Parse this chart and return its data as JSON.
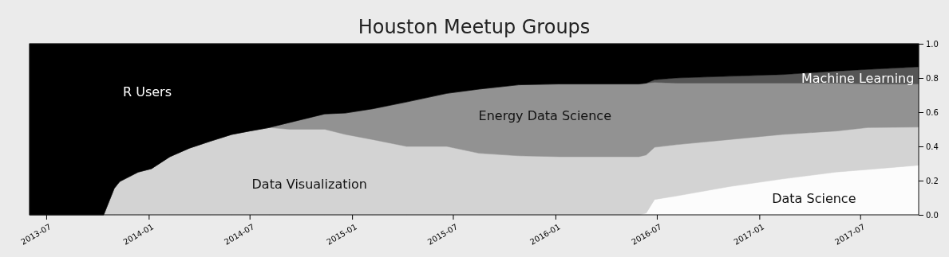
{
  "chart_data": {
    "type": "area",
    "title": "Houston Meetup Groups",
    "stacked": true,
    "legend": false,
    "grid": false,
    "x": [
      "2013-06-01",
      "2013-10-12",
      "2013-10-31",
      "2013-11-10",
      "2013-12-13",
      "2014-01-06",
      "2014-02-08",
      "2014-03-15",
      "2014-04-21",
      "2014-05-30",
      "2014-07-01",
      "2014-08-05",
      "2014-09-11",
      "2014-11-13",
      "2014-12-20",
      "2015-02-07",
      "2015-04-09",
      "2015-06-20",
      "2015-08-17",
      "2015-10-27",
      "2016-01-07",
      "2016-05-30",
      "2016-06-12",
      "2016-06-27",
      "2016-08-05",
      "2016-11-08",
      "2017-02-12",
      "2017-05-19",
      "2017-07-15",
      "2017-10-14"
    ],
    "xlim": [
      "2013-06-01",
      "2017-10-14"
    ],
    "xticks": [
      {
        "value": "2013-07",
        "label": "2013-07"
      },
      {
        "value": "2014-01",
        "label": "2014-01"
      },
      {
        "value": "2014-07",
        "label": "2014-07"
      },
      {
        "value": "2015-01",
        "label": "2015-01"
      },
      {
        "value": "2015-07",
        "label": "2015-07"
      },
      {
        "value": "2016-01",
        "label": "2016-01"
      },
      {
        "value": "2016-07",
        "label": "2016-07"
      },
      {
        "value": "2017-01",
        "label": "2017-01"
      },
      {
        "value": "2017-07",
        "label": "2017-07"
      }
    ],
    "ylim": [
      0,
      1
    ],
    "yticks": [
      {
        "value": 0,
        "label": "0.0"
      },
      {
        "value": 0.2,
        "label": "0.2"
      },
      {
        "value": 0.4,
        "label": "0.4"
      },
      {
        "value": 0.6,
        "label": "0.6"
      },
      {
        "value": 0.8,
        "label": "0.8"
      },
      {
        "value": 1,
        "label": "1.0"
      }
    ],
    "series": [
      {
        "name": "Data Science",
        "color": "#fcfcfc",
        "values": [
          0,
          0,
          0,
          0,
          0,
          0,
          0,
          0,
          0,
          0,
          0,
          0,
          0,
          0,
          0,
          0,
          0,
          0,
          0,
          0,
          0,
          0,
          0.01,
          0.09,
          0.11,
          0.165,
          0.21,
          0.25,
          0.265,
          0.29
        ]
      },
      {
        "name": "Data Visualization",
        "color": "#d3d3d3",
        "values": [
          0,
          0,
          0.155,
          0.195,
          0.25,
          0.27,
          0.34,
          0.39,
          0.43,
          0.47,
          0.49,
          0.51,
          0.5,
          0.5,
          0.47,
          0.44,
          0.4,
          0.4,
          0.36,
          0.345,
          0.34,
          0.34,
          0.34,
          0.305,
          0.3,
          0.275,
          0.26,
          0.24,
          0.245,
          0.223
        ]
      },
      {
        "name": "Energy Data Science",
        "color": "#929292",
        "values": [
          0,
          0,
          0,
          0,
          0,
          0,
          0,
          0,
          0,
          0,
          0,
          0,
          0.04,
          0.09,
          0.125,
          0.18,
          0.26,
          0.31,
          0.375,
          0.415,
          0.425,
          0.425,
          0.42,
          0.38,
          0.36,
          0.33,
          0.3,
          0.28,
          0.255,
          0.252
        ]
      },
      {
        "name": "Machine Learning",
        "color": "#555555",
        "values": [
          0,
          0,
          0,
          0,
          0,
          0,
          0,
          0,
          0,
          0,
          0,
          0,
          0,
          0,
          0,
          0,
          0,
          0,
          0,
          0,
          0,
          0,
          0,
          0.015,
          0.03,
          0.04,
          0.05,
          0.07,
          0.085,
          0.1
        ]
      },
      {
        "name": "R Users",
        "color": "#000000",
        "values": [
          1,
          1,
          0.845,
          0.805,
          0.75,
          0.73,
          0.66,
          0.61,
          0.57,
          0.53,
          0.51,
          0.49,
          0.46,
          0.41,
          0.405,
          0.38,
          0.34,
          0.29,
          0.265,
          0.24,
          0.235,
          0.235,
          0.23,
          0.21,
          0.2,
          0.19,
          0.18,
          0.16,
          0.15,
          0.135
        ]
      }
    ]
  }
}
